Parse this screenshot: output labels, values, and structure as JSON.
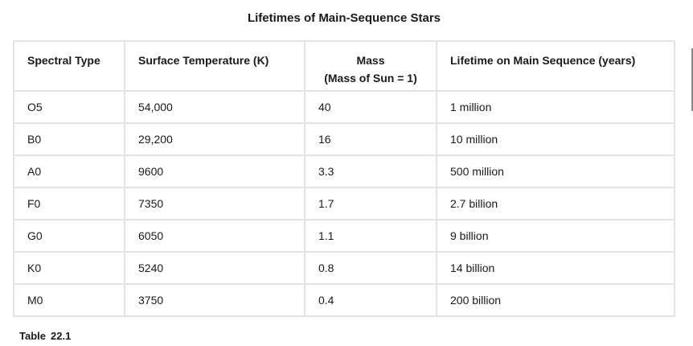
{
  "title": "Lifetimes of Main-Sequence Stars",
  "table": {
    "headers": {
      "spectral_type": "Spectral Type",
      "surface_temperature": "Surface Temperature (K)",
      "mass_line1": "Mass",
      "mass_line2": "(Mass of Sun = 1)",
      "lifetime": "Lifetime on Main Sequence (years)"
    },
    "rows": [
      {
        "type": "O5",
        "temp": "54,000",
        "mass": "40",
        "lifetime": "1 million"
      },
      {
        "type": "B0",
        "temp": "29,200",
        "mass": "16",
        "lifetime": "10 million"
      },
      {
        "type": "A0",
        "temp": "9600",
        "mass": "3.3",
        "lifetime": "500 million"
      },
      {
        "type": "F0",
        "temp": "7350",
        "mass": "1.7",
        "lifetime": "2.7 billion"
      },
      {
        "type": "G0",
        "temp": "6050",
        "mass": "1.1",
        "lifetime": "9 billion"
      },
      {
        "type": "K0",
        "temp": "5240",
        "mass": "0.8",
        "lifetime": "14 billion"
      },
      {
        "type": "M0",
        "temp": "3750",
        "mass": "0.4",
        "lifetime": "200 billion"
      }
    ]
  },
  "caption": {
    "label": "Table",
    "number": "22.1"
  }
}
